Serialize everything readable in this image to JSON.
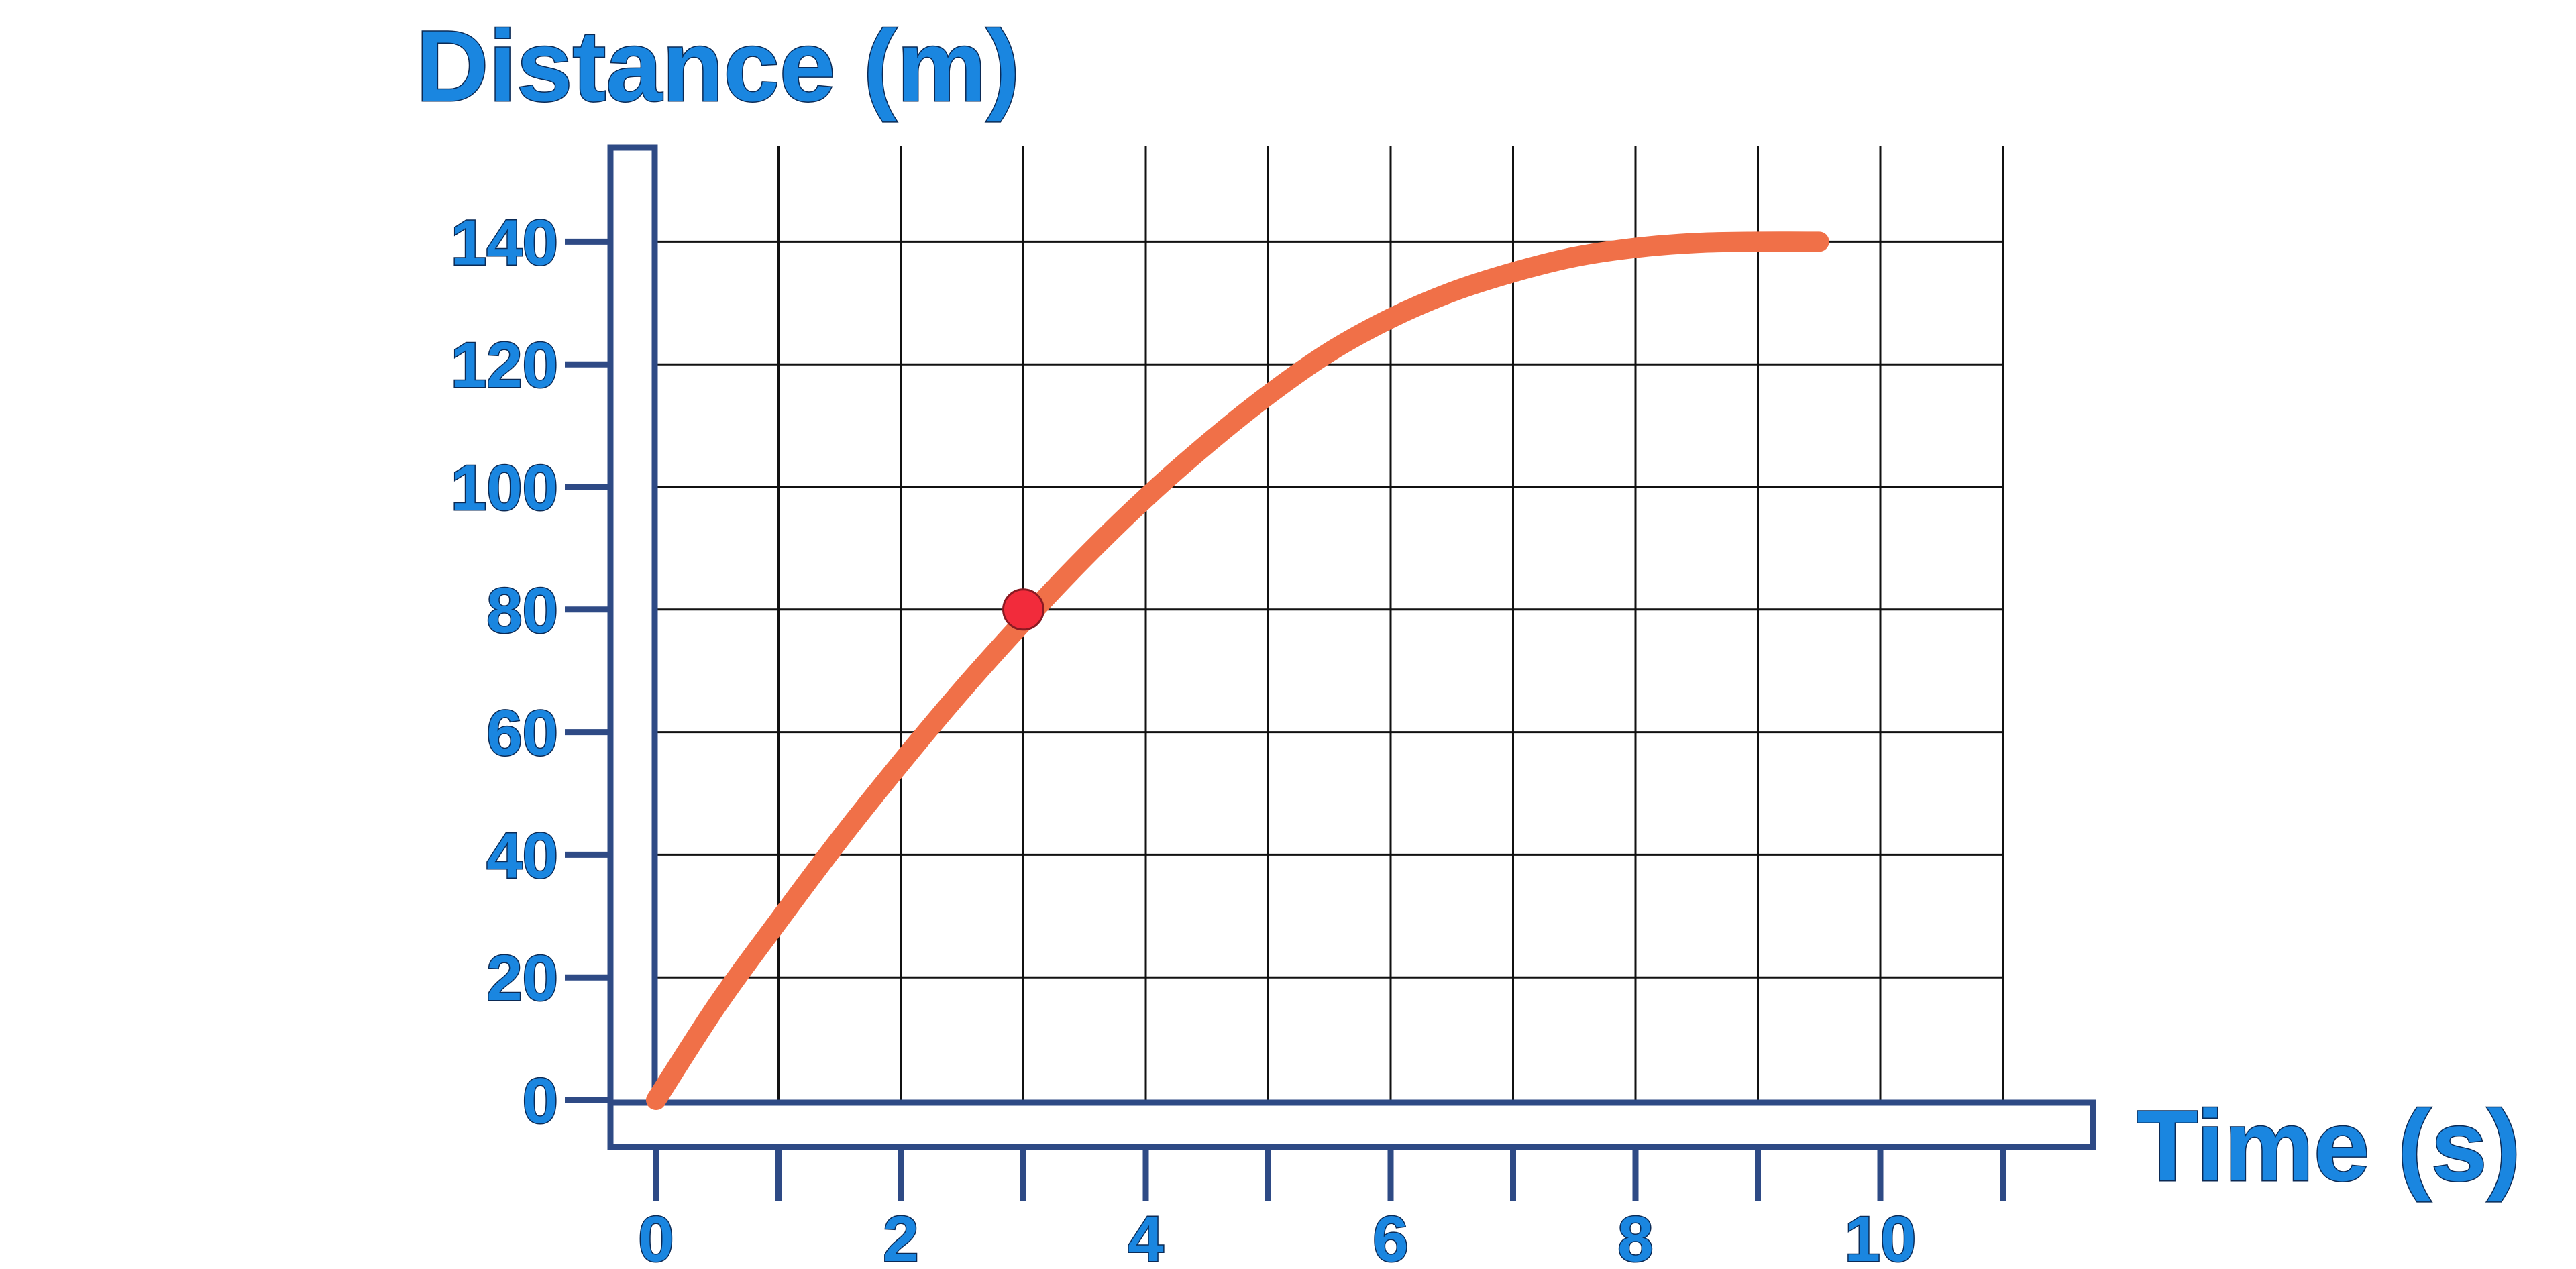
{
  "chart_data": {
    "type": "line",
    "title": "",
    "xlabel": "Time (s)",
    "ylabel": "Distance (m)",
    "xlim": [
      0,
      11
    ],
    "ylim": [
      0,
      140
    ],
    "grid": true,
    "x_ticks": [
      0,
      2,
      4,
      6,
      8,
      10
    ],
    "y_ticks": [
      0,
      20,
      40,
      60,
      80,
      100,
      120,
      140
    ],
    "x_tick_labels": [
      "0",
      "2",
      "4",
      "6",
      "8",
      "10"
    ],
    "y_tick_labels": [
      "0",
      "20",
      "40",
      "60",
      "80",
      "100",
      "120",
      "140"
    ],
    "series": [
      {
        "x": [
          0,
          0.5,
          1,
          1.5,
          2,
          2.5,
          3,
          3.5,
          4,
          4.5,
          5,
          5.5,
          6,
          6.5,
          7,
          7.5,
          8,
          8.5,
          9,
          9.5
        ],
        "y": [
          0,
          15.5,
          29.2,
          42.5,
          55.0,
          66.9,
          78.0,
          88.5,
          98.2,
          107.0,
          115.0,
          122.0,
          127.5,
          131.8,
          135.0,
          137.5,
          139.0,
          139.8,
          140.0,
          140.0
        ],
        "color": "#f07048"
      }
    ],
    "highlight_point": {
      "x": 3,
      "y": 80,
      "color": "#f22b3b"
    }
  }
}
